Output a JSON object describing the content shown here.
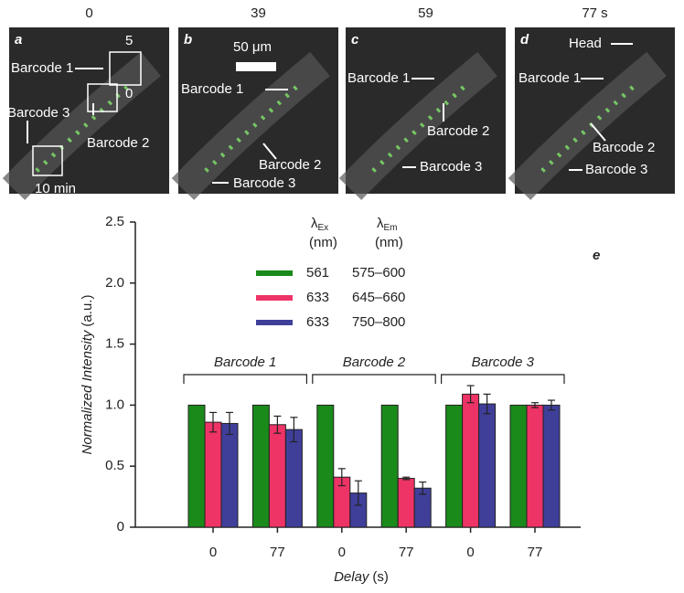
{
  "panels": [
    {
      "time": "0",
      "letter": "a",
      "annotations": [
        "5",
        "Barcode 1",
        "0",
        "Barcode 3",
        "Barcode 2",
        "10 min"
      ]
    },
    {
      "time": "39",
      "letter": "b",
      "annotations": [
        "50 μm",
        "Barcode 1",
        "Barcode 2",
        "Barcode 3"
      ]
    },
    {
      "time": "59",
      "letter": "c",
      "annotations": [
        "Barcode 1",
        "Barcode 2",
        "Barcode 3"
      ]
    },
    {
      "time": "77 s",
      "letter": "d",
      "annotations": [
        "Head",
        "Barcode 1",
        "Barcode 2",
        "Barcode 3"
      ]
    }
  ],
  "chart_data": {
    "type": "bar",
    "panel_label": "e",
    "y_label": "Normalized Intensity",
    "y_unit": "(a.u.)",
    "x_label": "Delay",
    "x_unit": "(s)",
    "legend_ex": "λ",
    "legend_ex_sub": "Ex",
    "legend_em": "λ",
    "legend_em_sub": "Em",
    "legend_unit": "(nm)",
    "categories": [
      "0",
      "77",
      "0",
      "77",
      "0",
      "77"
    ],
    "groups": [
      "Barcode 1",
      "Barcode 2",
      "Barcode 3"
    ],
    "series": [
      {
        "name": "561",
        "emission": "575–600",
        "color": "#1a8a1a",
        "values": [
          1,
          1,
          1,
          1,
          1,
          1
        ]
      },
      {
        "name": "633",
        "emission": "645–660",
        "color": "#ee3366",
        "values": [
          0.86,
          0.84,
          0.41,
          0.4,
          1.09,
          1.0
        ],
        "errors": [
          0.08,
          0.07,
          0.07,
          0.01,
          0.07,
          0.02
        ]
      },
      {
        "name": "633",
        "emission": "750–800",
        "color": "#3f3f9a",
        "values": [
          0.85,
          0.8,
          0.28,
          0.32,
          1.01,
          1.0
        ],
        "errors": [
          0.09,
          0.1,
          0.1,
          0.05,
          0.08,
          0.04
        ]
      }
    ],
    "ylim": [
      0,
      2.5
    ],
    "yticks": [
      0,
      0.5,
      {
        "value": 1,
        "label": "1.0"
      },
      1.5,
      {
        "value": 2,
        "label": "2.0"
      },
      2.5
    ]
  }
}
